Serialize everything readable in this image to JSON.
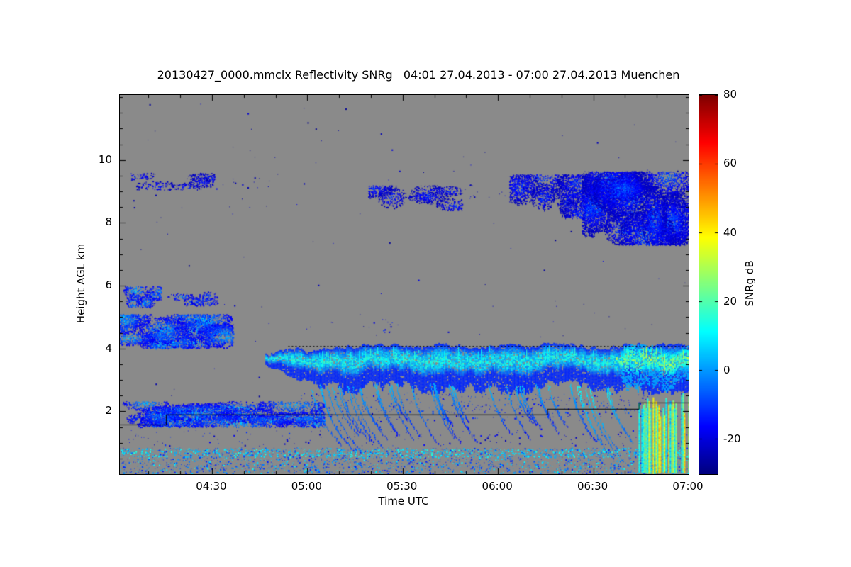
{
  "chart_data": {
    "type": "heatmap",
    "title": "20130427_0000.mmclx Reflectivity SNRg   04:01 27.04.2013 - 07:00 27.04.2013 Muenchen",
    "xlabel": "Time UTC",
    "ylabel": "Height AGL km",
    "x_range_hours": [
      4.0167,
      7.0
    ],
    "y_range_km": [
      0,
      12.07
    ],
    "x_ticks": [
      {
        "hour": 4.5,
        "label": "04:30"
      },
      {
        "hour": 5.0,
        "label": "05:00"
      },
      {
        "hour": 5.5,
        "label": "05:30"
      },
      {
        "hour": 6.0,
        "label": "06:00"
      },
      {
        "hour": 6.5,
        "label": "06:30"
      },
      {
        "hour": 7.0,
        "label": "07:00"
      }
    ],
    "x_minor_step_hours": 0.1666667,
    "y_major_ticks": [
      2,
      4,
      6,
      8,
      10
    ],
    "y_minor_step_km": 0.5,
    "background_color": "#8a8a8a",
    "colorbar": {
      "label": "SNRg dB",
      "range_db": [
        -30,
        80
      ],
      "major_ticks": [
        80,
        60,
        40,
        20,
        0,
        -20
      ],
      "colormap": "jet"
    },
    "regions": [
      {
        "name": "background-noise-dots",
        "mode": "speckle",
        "t": [
          4.0167,
          7.0
        ],
        "h": [
          1.5,
          11.8
        ],
        "snr": [
          -28,
          -18
        ],
        "density": 0.0018
      },
      {
        "name": "surface-noise-band",
        "mode": "speckle",
        "t": [
          4.0167,
          7.0
        ],
        "h": [
          0.03,
          0.85
        ],
        "snr": [
          -14,
          12
        ],
        "density": 0.42
      },
      {
        "name": "surface-bright-line",
        "mode": "speckle",
        "t": [
          4.0167,
          7.0
        ],
        "h": [
          0.55,
          0.82
        ],
        "snr": [
          2,
          16
        ],
        "density": 0.55
      },
      {
        "name": "residual-layer-speckle",
        "mode": "speckle",
        "t": [
          4.0167,
          7.0
        ],
        "h": [
          0.9,
          1.42
        ],
        "snr": [
          -24,
          -10
        ],
        "density": 0.045
      },
      {
        "name": "low-cloud-patches",
        "mode": "blob",
        "t": [
          4.0167,
          5.08
        ],
        "h": [
          1.55,
          2.28
        ],
        "snr": [
          -18,
          10
        ],
        "density": 0.55,
        "clusters": 16
      },
      {
        "name": "low-level-speckle-line",
        "mode": "speckle",
        "t": [
          5.05,
          7.0
        ],
        "h": [
          1.72,
          2.12
        ],
        "snr": [
          -22,
          -6
        ],
        "density": 0.06
      },
      {
        "name": "virga-underhang-speckle",
        "mode": "speckle",
        "t": [
          4.95,
          6.8
        ],
        "h": [
          1.95,
          2.6
        ],
        "snr": [
          -20,
          -4
        ],
        "density": 0.1
      },
      {
        "name": "mid-cloud-left-lower",
        "mode": "blob",
        "t": [
          4.0167,
          4.6
        ],
        "h": [
          4.05,
          5.05
        ],
        "snr": [
          -18,
          12
        ],
        "density": 0.75,
        "clusters": 12
      },
      {
        "name": "mid-cloud-left-upper",
        "mode": "blob",
        "t": [
          4.0167,
          4.22
        ],
        "h": [
          5.35,
          5.95
        ],
        "snr": [
          -18,
          10
        ],
        "density": 0.6,
        "clusters": 6
      },
      {
        "name": "mid-cloud-left-upper-2",
        "mode": "blob",
        "t": [
          4.26,
          4.52
        ],
        "h": [
          5.42,
          5.8
        ],
        "snr": [
          -20,
          4
        ],
        "density": 0.5,
        "clusters": 4
      },
      {
        "name": "mid-level-dots",
        "mode": "speckle",
        "t": [
          5.32,
          5.48
        ],
        "h": [
          4.5,
          4.95
        ],
        "snr": [
          -22,
          -10
        ],
        "density": 0.08
      },
      {
        "name": "cirrus-patch-1",
        "mode": "blob",
        "t": [
          4.08,
          4.5
        ],
        "h": [
          9.1,
          9.55
        ],
        "snr": [
          -24,
          -8
        ],
        "density": 0.35,
        "clusters": 6
      },
      {
        "name": "cirrus-dots-1",
        "mode": "speckle",
        "t": [
          4.45,
          4.8
        ],
        "h": [
          9.1,
          9.5
        ],
        "snr": [
          -26,
          -14
        ],
        "density": 0.05
      },
      {
        "name": "cirrus-patch-2",
        "mode": "blob",
        "t": [
          5.33,
          5.8
        ],
        "h": [
          8.45,
          9.15
        ],
        "snr": [
          -24,
          -6
        ],
        "density": 0.5,
        "clusters": 7
      },
      {
        "name": "cirrus-dots-2",
        "mode": "speckle",
        "t": [
          5.82,
          6.12
        ],
        "h": [
          8.75,
          9.3
        ],
        "snr": [
          -26,
          -14
        ],
        "density": 0.04
      },
      {
        "name": "high-cloud-right-a",
        "mode": "blob",
        "t": [
          6.07,
          6.55
        ],
        "h": [
          8.2,
          9.5
        ],
        "snr": [
          -24,
          -4
        ],
        "density": 0.5,
        "clusters": 10
      },
      {
        "name": "high-cloud-right-b",
        "mode": "blob",
        "t": [
          6.45,
          7.0
        ],
        "h": [
          7.35,
          9.6
        ],
        "snr": [
          -24,
          2
        ],
        "density": 0.75,
        "clusters": 14
      },
      {
        "name": "main-cloud-layer",
        "mode": "layer",
        "t": [
          4.78,
          7.0
        ],
        "h": [
          2.55,
          4.18
        ],
        "snr": [
          -14,
          18
        ],
        "density": 0.9,
        "ramp_hours": 0.3
      },
      {
        "name": "layer-right-green-cores",
        "mode": "layer",
        "t": [
          6.62,
          7.0
        ],
        "h": [
          2.6,
          4.15
        ],
        "snr": [
          0,
          34
        ],
        "density": 0.5,
        "ramp_hours": 0.05
      },
      {
        "name": "virga-streaks",
        "mode": "streaks",
        "t": [
          4.92,
          6.6
        ],
        "h": [
          0.9,
          2.9
        ],
        "snr": [
          -18,
          8
        ],
        "count": 26,
        "slant": 0.05
      },
      {
        "name": "deep-virga-early",
        "mode": "streaks",
        "t": [
          4.98,
          5.3
        ],
        "h": [
          0.5,
          2.8
        ],
        "snr": [
          -14,
          6
        ],
        "count": 8,
        "slant": 0.06
      },
      {
        "name": "strong-virga-right",
        "mode": "streaks",
        "t": [
          6.35,
          6.6
        ],
        "h": [
          0.4,
          2.8
        ],
        "snr": [
          -10,
          14
        ],
        "count": 6,
        "slant": 0.05
      },
      {
        "name": "precip-columns-far-right",
        "mode": "columns",
        "t": [
          6.73,
          7.0
        ],
        "h": [
          0.05,
          2.6
        ],
        "snr": [
          5,
          42
        ],
        "density": 0.6
      }
    ],
    "contours": [
      {
        "name": "step-line",
        "points": [
          [
            4.0167,
            1.58
          ],
          [
            4.26,
            1.58
          ],
          [
            4.26,
            1.9
          ],
          [
            6.26,
            1.9
          ],
          [
            6.26,
            2.08
          ],
          [
            6.74,
            2.08
          ],
          [
            6.74,
            2.28
          ],
          [
            7.0,
            2.28
          ]
        ],
        "dash": []
      },
      {
        "name": "layer-top-dotted-line",
        "points": [
          [
            4.9,
            4.08
          ],
          [
            7.0,
            4.08
          ]
        ],
        "dash": [
          2,
          3
        ]
      }
    ]
  }
}
